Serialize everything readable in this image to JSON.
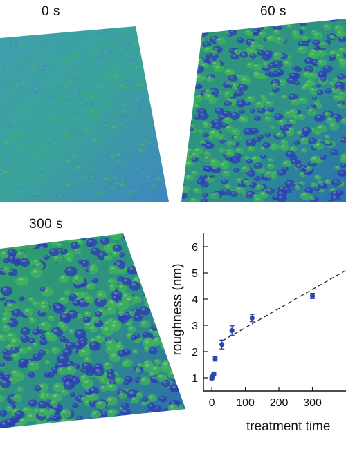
{
  "panels": [
    {
      "label": "0 s",
      "roughness": "smooth"
    },
    {
      "label": "60 s",
      "roughness": "medium"
    },
    {
      "label": "300 s",
      "roughness": "rough"
    }
  ],
  "surface_colors": {
    "low": "#2a3fb0",
    "mid": "#3f86b9",
    "high": "#3fb35a"
  },
  "chart_data": {
    "type": "scatter",
    "xlabel": "treatment time",
    "ylabel": "roughness (nm)",
    "xlim": [
      -25,
      400
    ],
    "ylim": [
      0.5,
      6.5
    ],
    "xticks": [
      "0",
      "100",
      "200",
      "300"
    ],
    "yticks": [
      "1",
      "2",
      "3",
      "4",
      "5",
      "6"
    ],
    "point_color": "#2c46a6",
    "series": [
      {
        "x": [
          0,
          3,
          6,
          10,
          30,
          60,
          120,
          300
        ],
        "y": [
          0.98,
          1.08,
          1.15,
          1.72,
          2.27,
          2.8,
          3.28,
          4.12
        ],
        "err": [
          0.05,
          0.06,
          0.05,
          0.08,
          0.17,
          0.18,
          0.14,
          0.1
        ]
      }
    ],
    "fit": {
      "style": "dashed",
      "x": [
        30,
        400
      ],
      "y": [
        2.4,
        5.1
      ]
    }
  }
}
